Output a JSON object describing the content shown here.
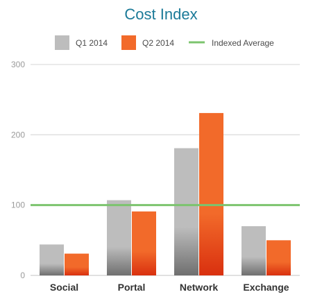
{
  "chart_data": {
    "type": "bar",
    "title": "Cost Index",
    "xlabel": "",
    "ylabel": "",
    "categories": [
      "Social",
      "Portal",
      "Network",
      "Exchange"
    ],
    "series": [
      {
        "name": "Q1 2014",
        "color": "#bdbdbd",
        "gradient_bottom": "#6f6f6f",
        "values": [
          44,
          107,
          181,
          70
        ]
      },
      {
        "name": "Q2 2014",
        "color": "#f26a2a",
        "gradient_bottom": "#d9300f",
        "values": [
          31,
          91,
          231,
          50
        ]
      }
    ],
    "reference_line": {
      "name": "Indexed Average",
      "value": 100,
      "color": "#7cc46e"
    },
    "ylim": [
      0,
      300
    ],
    "yticks": [
      "0",
      "100",
      "200",
      "300"
    ],
    "grid": true,
    "legend_position": "top"
  }
}
